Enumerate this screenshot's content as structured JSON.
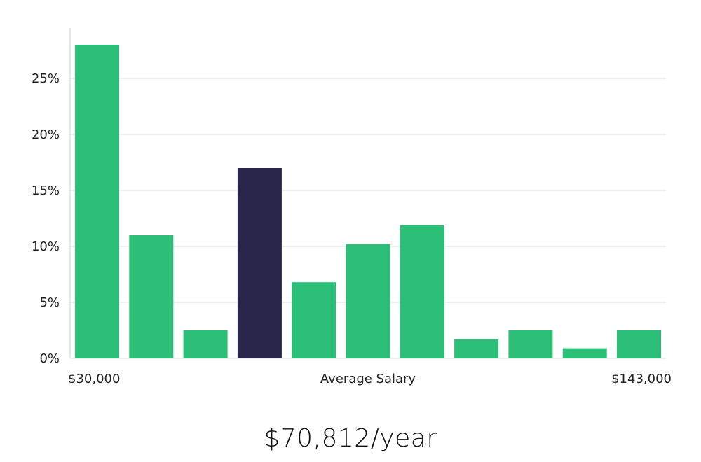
{
  "chart_data": {
    "type": "bar",
    "title": "",
    "xlabel": "Average Salary",
    "ylabel": "",
    "x_range_labels": {
      "min": "$30,000",
      "max": "$143,000"
    },
    "y_ticks": [
      "0%",
      "5%",
      "10%",
      "15%",
      "20%",
      "25%"
    ],
    "ylim": [
      0,
      29
    ],
    "grid": true,
    "values": [
      28,
      11,
      2.5,
      17,
      6.8,
      10.2,
      11.9,
      1.7,
      2.5,
      0.9,
      2.5
    ],
    "highlight_index": 3,
    "colors": {
      "bar": "#2bbf78",
      "highlight": "#29254a",
      "grid": "#dddddd",
      "axis": "#cccccc"
    }
  },
  "summary": {
    "salary_text": "$70,812/year"
  }
}
